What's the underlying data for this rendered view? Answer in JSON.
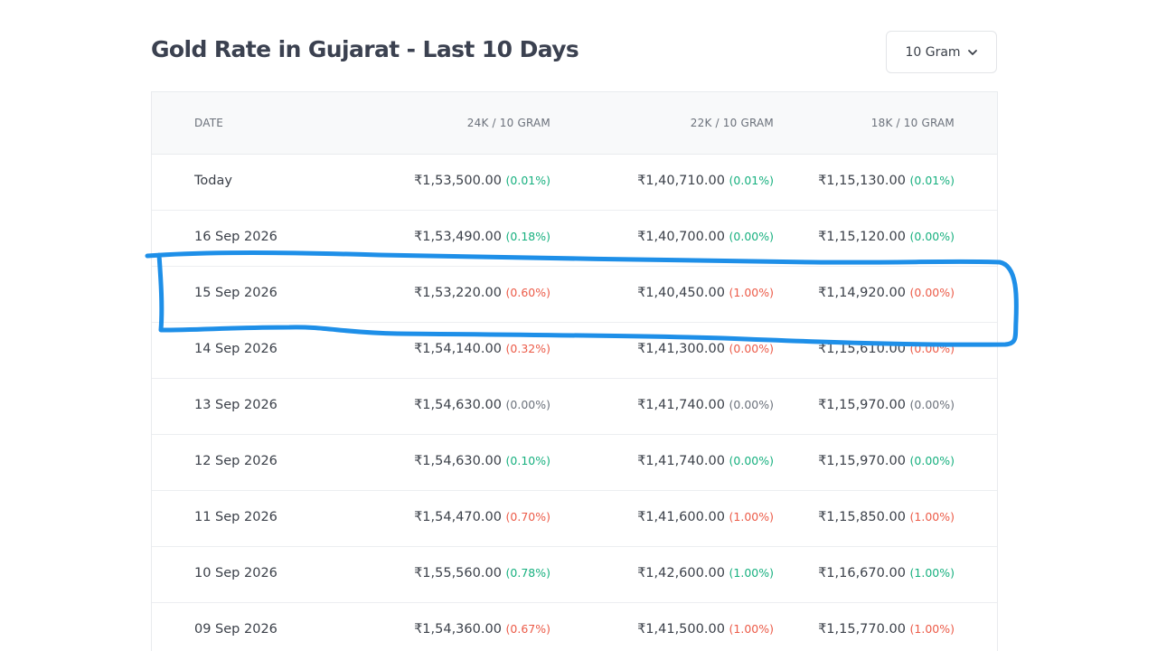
{
  "header": {
    "title": "Gold Rate in Gujarat - Last 10 Days",
    "unit_select_value": "10 Gram"
  },
  "table": {
    "columns": [
      "DATE",
      "24K / 10 GRAM",
      "22K / 10 GRAM",
      "18K / 10 GRAM"
    ],
    "rows": [
      {
        "date": "Today",
        "k24": "₹1,53,500.00",
        "k24_chg": "(0.01%)",
        "k24_dir": "up",
        "k22": "₹1,40,710.00",
        "k22_chg": "(0.01%)",
        "k22_dir": "up",
        "k18": "₹1,15,130.00",
        "k18_chg": "(0.01%)",
        "k18_dir": "up"
      },
      {
        "date": "16 Sep 2026",
        "k24": "₹1,53,490.00",
        "k24_chg": "(0.18%)",
        "k24_dir": "up",
        "k22": "₹1,40,700.00",
        "k22_chg": "(0.00%)",
        "k22_dir": "up",
        "k18": "₹1,15,120.00",
        "k18_chg": "(0.00%)",
        "k18_dir": "up"
      },
      {
        "date": "15 Sep 2026",
        "k24": "₹1,53,220.00",
        "k24_chg": "(0.60%)",
        "k24_dir": "down",
        "k22": "₹1,40,450.00",
        "k22_chg": "(1.00%)",
        "k22_dir": "down",
        "k18": "₹1,14,920.00",
        "k18_chg": "(0.00%)",
        "k18_dir": "down"
      },
      {
        "date": "14 Sep 2026",
        "k24": "₹1,54,140.00",
        "k24_chg": "(0.32%)",
        "k24_dir": "down",
        "k22": "₹1,41,300.00",
        "k22_chg": "(0.00%)",
        "k22_dir": "down",
        "k18": "₹1,15,610.00",
        "k18_chg": "(0.00%)",
        "k18_dir": "down"
      },
      {
        "date": "13 Sep 2026",
        "k24": "₹1,54,630.00",
        "k24_chg": "(0.00%)",
        "k24_dir": "flat",
        "k22": "₹1,41,740.00",
        "k22_chg": "(0.00%)",
        "k22_dir": "flat",
        "k18": "₹1,15,970.00",
        "k18_chg": "(0.00%)",
        "k18_dir": "flat"
      },
      {
        "date": "12 Sep 2026",
        "k24": "₹1,54,630.00",
        "k24_chg": "(0.10%)",
        "k24_dir": "up",
        "k22": "₹1,41,740.00",
        "k22_chg": "(0.00%)",
        "k22_dir": "up",
        "k18": "₹1,15,970.00",
        "k18_chg": "(0.00%)",
        "k18_dir": "up"
      },
      {
        "date": "11 Sep 2026",
        "k24": "₹1,54,470.00",
        "k24_chg": "(0.70%)",
        "k24_dir": "down",
        "k22": "₹1,41,600.00",
        "k22_chg": "(1.00%)",
        "k22_dir": "down",
        "k18": "₹1,15,850.00",
        "k18_chg": "(1.00%)",
        "k18_dir": "down"
      },
      {
        "date": "10 Sep 2026",
        "k24": "₹1,55,560.00",
        "k24_chg": "(0.78%)",
        "k24_dir": "up",
        "k22": "₹1,42,600.00",
        "k22_chg": "(1.00%)",
        "k22_dir": "up",
        "k18": "₹1,16,670.00",
        "k18_chg": "(1.00%)",
        "k18_dir": "up"
      },
      {
        "date": "09 Sep 2026",
        "k24": "₹1,54,360.00",
        "k24_chg": "(0.67%)",
        "k24_dir": "down",
        "k22": "₹1,41,500.00",
        "k22_chg": "(1.00%)",
        "k22_dir": "down",
        "k18": "₹1,15,770.00",
        "k18_chg": "(1.00%)",
        "k18_dir": "down"
      }
    ]
  },
  "colors": {
    "up": "#17b07f",
    "down": "#ec5b48",
    "flat": "#6b717b",
    "annotation": "#1e8fe8"
  },
  "icons": {
    "dropdown": "chevron-down-icon"
  }
}
